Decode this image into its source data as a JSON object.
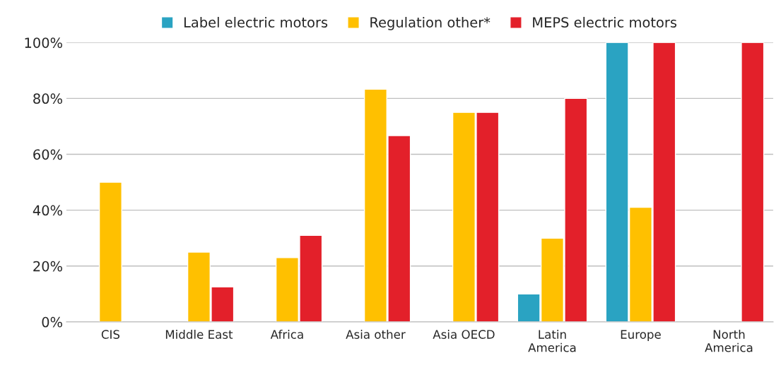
{
  "chart_data": {
    "type": "bar",
    "categories": [
      "CIS",
      "Middle East",
      "Africa",
      "Asia other",
      "Asia OECD",
      "Latin\nAmerica",
      "Europe",
      "North\nAmerica"
    ],
    "series": [
      {
        "name": "Label electric motors",
        "color": "#2aa3c2",
        "values": [
          null,
          null,
          null,
          null,
          null,
          10,
          100,
          null
        ]
      },
      {
        "name": "Regulation other*",
        "color": "#ffc000",
        "values": [
          50,
          25,
          23,
          83.3,
          75,
          30,
          41,
          null
        ]
      },
      {
        "name": "MEPS electric motors",
        "color": "#e3202a",
        "values": [
          null,
          12.5,
          31,
          66.7,
          75,
          80,
          100,
          100
        ]
      }
    ],
    "ylim": [
      0,
      100
    ],
    "yticks": [
      {
        "value": 0,
        "label": "0%"
      },
      {
        "value": 20,
        "label": "20%"
      },
      {
        "value": 40,
        "label": "40%"
      },
      {
        "value": 60,
        "label": "60%"
      },
      {
        "value": 80,
        "label": "80%"
      },
      {
        "value": 100,
        "label": "100%"
      }
    ],
    "grid": "y",
    "legend": "top"
  }
}
